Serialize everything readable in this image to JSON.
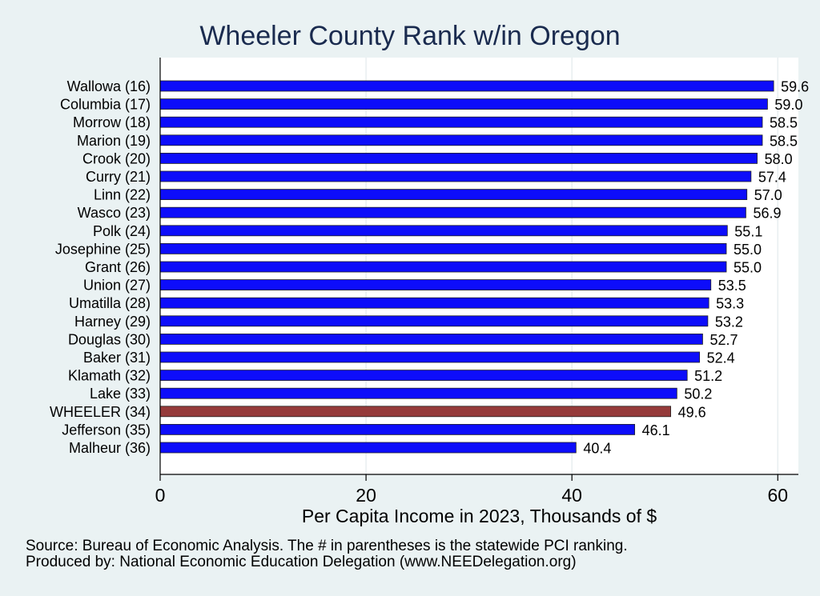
{
  "chart_data": {
    "type": "bar",
    "orientation": "horizontal",
    "title": "Wheeler County Rank w/in Oregon",
    "xlabel": "Per Capita Income in 2023, Thousands of $",
    "ylabel": "",
    "xlim": [
      0,
      62
    ],
    "xticks": [
      0,
      20,
      40,
      60
    ],
    "grid": true,
    "categories": [
      "Wallowa (16)",
      "Columbia (17)",
      "Morrow (18)",
      "Marion (19)",
      "Crook (20)",
      "Curry (21)",
      "Linn (22)",
      "Wasco (23)",
      "Polk (24)",
      "Josephine (25)",
      "Grant (26)",
      "Union (27)",
      "Umatilla (28)",
      "Harney (29)",
      "Douglas (30)",
      "Baker (31)",
      "Klamath (32)",
      "Lake (33)",
      "WHEELER (34)",
      "Jefferson (35)",
      "Malheur (36)"
    ],
    "values": [
      59.6,
      59.0,
      58.5,
      58.5,
      58.0,
      57.4,
      57.0,
      56.9,
      55.1,
      55.0,
      55.0,
      53.5,
      53.3,
      53.2,
      52.7,
      52.4,
      51.2,
      50.2,
      49.6,
      46.1,
      40.4
    ],
    "value_labels": [
      "59.6",
      "59.0",
      "58.5",
      "58.5",
      "58.0",
      "57.4",
      "57.0",
      "56.9",
      "55.1",
      "55.0",
      "55.0",
      "53.5",
      "53.3",
      "53.2",
      "52.7",
      "52.4",
      "51.2",
      "50.2",
      "49.6",
      "46.1",
      "40.4"
    ],
    "highlight": "WHEELER (34)",
    "colors": {
      "bar": "#0d0dfa",
      "highlight": "#953a3a",
      "plot_bg": "#ffffff",
      "page_bg": "#eaf2f3",
      "title": "#1a2b4f",
      "grid": "#e8eef0"
    }
  },
  "footer": {
    "source": "Source: Bureau of Economic Analysis. The # in parentheses is the statewide PCI ranking.",
    "producer": "Produced by: National Economic Education Delegation (www.NEEDelegation.org)"
  }
}
